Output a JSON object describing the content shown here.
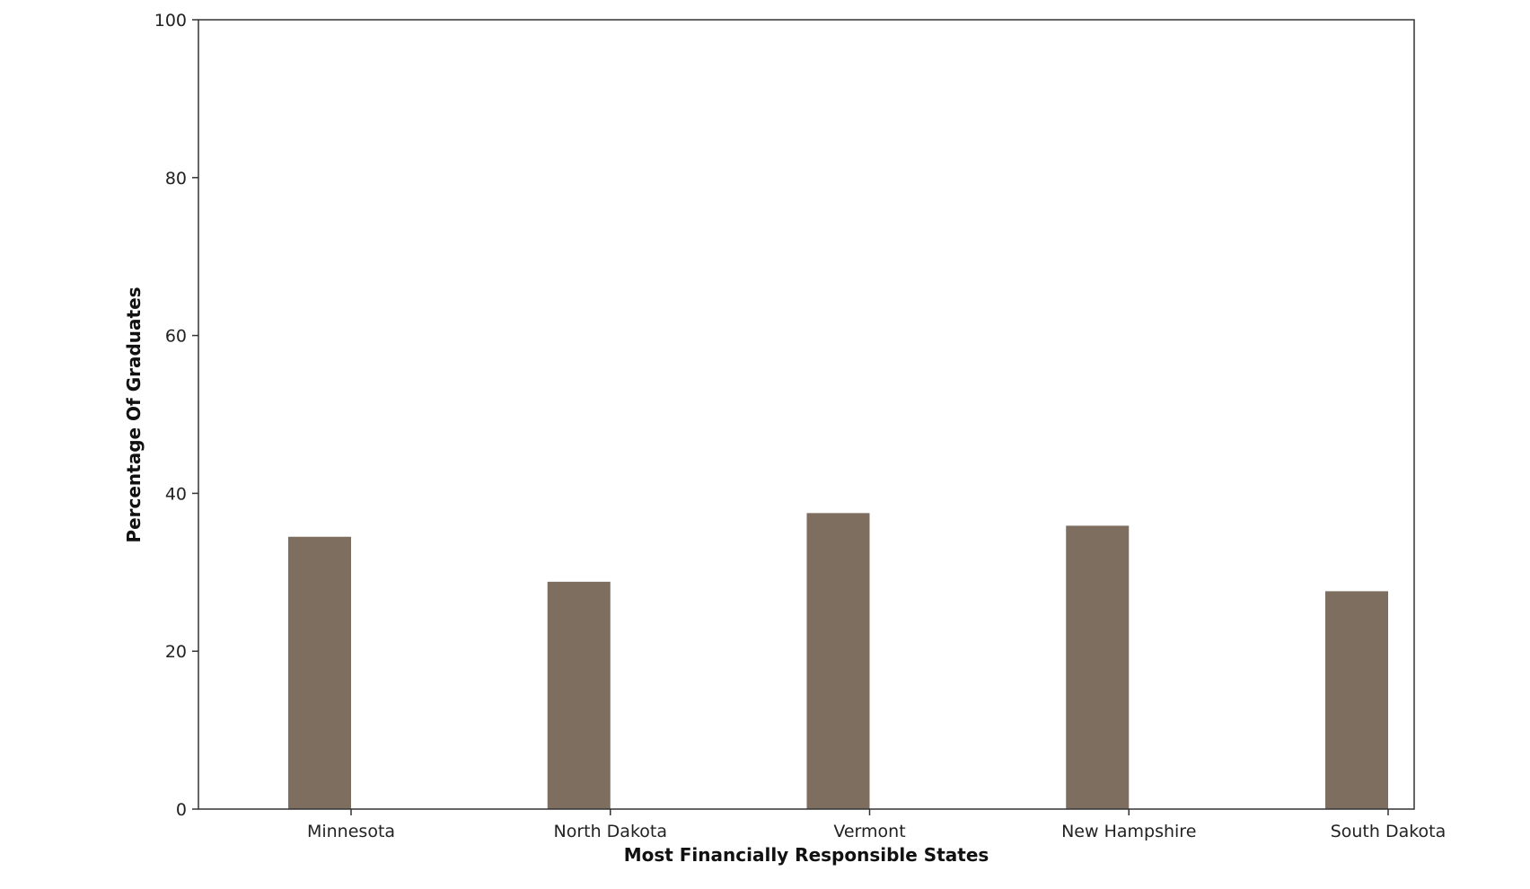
{
  "chart_data": {
    "type": "bar",
    "title": "",
    "xlabel": "Most Financially Responsible States",
    "ylabel": "Percentage Of Graduates",
    "categories": [
      "Minnesota",
      "North Dakota",
      "Vermont",
      "New Hampshire",
      "South Dakota"
    ],
    "values": [
      34.5,
      28.8,
      37.5,
      35.9,
      27.6
    ],
    "ylim": [
      0,
      100
    ],
    "yticks": [
      0,
      20,
      40,
      60,
      80,
      100
    ],
    "grid": false,
    "legend": false,
    "colors": {
      "bar": "#7e6e5f",
      "axis": "#333333"
    }
  }
}
